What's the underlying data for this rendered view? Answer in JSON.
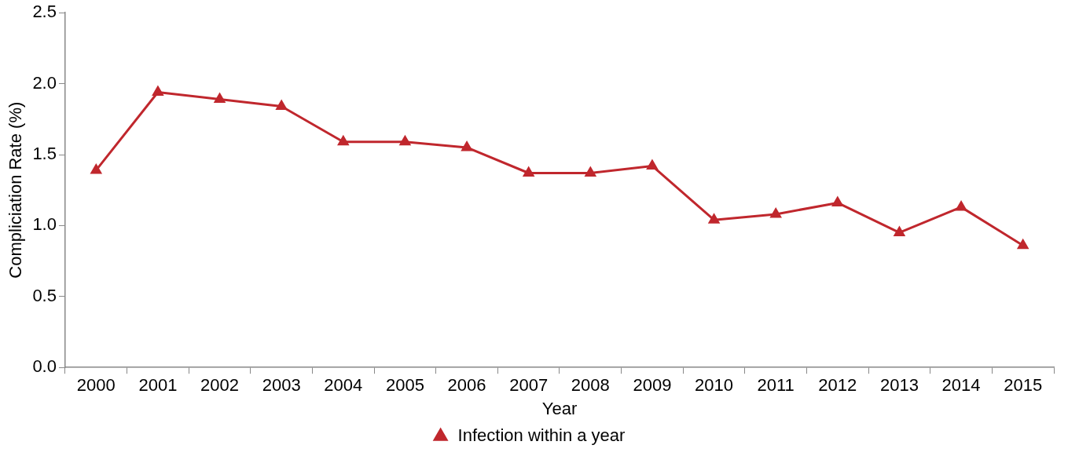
{
  "chart_data": {
    "type": "line",
    "xlabel": "Year",
    "ylabel": "Compliciation Rate (%)",
    "categories": [
      "2000",
      "2001",
      "2002",
      "2003",
      "2004",
      "2005",
      "2006",
      "2007",
      "2008",
      "2009",
      "2010",
      "2011",
      "2012",
      "2013",
      "2014",
      "2015"
    ],
    "series": [
      {
        "name": "Infection within a year",
        "color": "#c0272d",
        "values": [
          1.39,
          1.94,
          1.89,
          1.84,
          1.59,
          1.59,
          1.55,
          1.37,
          1.37,
          1.42,
          1.04,
          1.08,
          1.16,
          0.95,
          1.13,
          0.86
        ]
      }
    ],
    "ylim": [
      0,
      2.5
    ],
    "yticks": [
      {
        "value": 0,
        "label": "0.0"
      },
      {
        "value": 0.5,
        "label": "0.5"
      },
      {
        "value": 1,
        "label": "1.0"
      },
      {
        "value": 1.5,
        "label": "1.5"
      },
      {
        "value": 2,
        "label": "2.0"
      },
      {
        "value": 2.5,
        "label": "2.5"
      }
    ],
    "grid": false,
    "legend": "bottom",
    "marker": "triangle",
    "line_style": "solid"
  }
}
